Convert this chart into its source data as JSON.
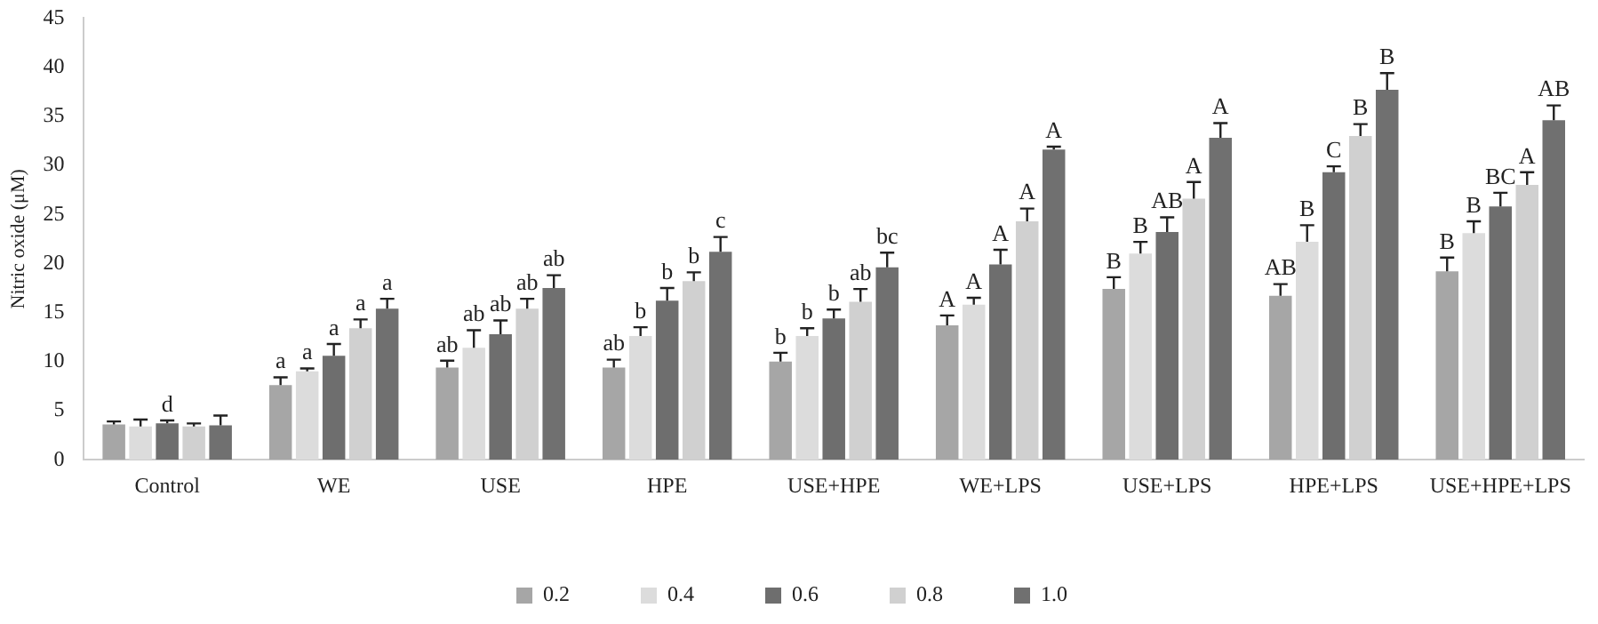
{
  "chart_data": {
    "type": "bar",
    "ylabel": "Nitric oxide (μM)",
    "categories": [
      "Control",
      "WE",
      "USE",
      "HPE",
      "USE+HPE",
      "WE+LPS",
      "USE+LPS",
      "HPE+LPS",
      "USE+HPE+LPS"
    ],
    "series": [
      {
        "name": "0.2",
        "color": "#a6a6a6",
        "values": [
          3.6,
          7.6,
          9.4,
          9.4,
          10.0,
          13.7,
          17.4,
          16.7,
          19.2
        ],
        "errors": [
          0.3,
          0.8,
          0.7,
          0.8,
          0.9,
          1.0,
          1.2,
          1.2,
          1.4
        ],
        "value_labels": [
          null,
          "a",
          "ab",
          "ab",
          "b",
          "A",
          "B",
          "AB",
          "B"
        ]
      },
      {
        "name": "0.4",
        "color": "#dcdcdc",
        "values": [
          3.4,
          9.0,
          11.4,
          12.6,
          12.6,
          15.8,
          21.0,
          22.2,
          23.1
        ],
        "errors": [
          0.7,
          0.3,
          1.8,
          0.9,
          0.8,
          0.7,
          1.2,
          1.7,
          1.2
        ],
        "value_labels": [
          null,
          "a",
          "ab",
          "b",
          "b",
          "A",
          "B",
          "B",
          "B"
        ]
      },
      {
        "name": "0.6",
        "color": "#6e6e6e",
        "values": [
          3.7,
          10.6,
          12.8,
          16.2,
          14.4,
          19.9,
          23.2,
          29.3,
          25.8
        ],
        "errors": [
          0.3,
          1.2,
          1.4,
          1.3,
          0.9,
          1.5,
          1.5,
          0.6,
          1.4
        ],
        "value_labels": [
          "d",
          "a",
          "ab",
          "b",
          "b",
          "A",
          "AB",
          "C",
          "BC"
        ]
      },
      {
        "name": "0.8",
        "color": "#d0d0d0",
        "values": [
          3.4,
          13.4,
          15.4,
          18.2,
          16.1,
          24.3,
          26.6,
          33.0,
          28.0
        ],
        "errors": [
          0.3,
          0.9,
          1.0,
          0.9,
          1.3,
          1.3,
          1.7,
          1.2,
          1.3
        ],
        "value_labels": [
          null,
          "a",
          "ab",
          "b",
          "ab",
          "A",
          "A",
          "B",
          "A"
        ]
      },
      {
        "name": "1.0",
        "color": "#707070",
        "values": [
          3.5,
          15.4,
          17.5,
          21.2,
          19.6,
          31.6,
          32.8,
          37.7,
          34.6
        ],
        "errors": [
          1.0,
          1.0,
          1.3,
          1.5,
          1.5,
          0.3,
          1.5,
          1.7,
          1.5
        ],
        "value_labels": [
          null,
          "a",
          "ab",
          "c",
          "bc",
          "A",
          "A",
          "B",
          "AB"
        ]
      }
    ],
    "ylim": [
      0,
      45
    ],
    "yticks": [
      0,
      5,
      10,
      15,
      20,
      25,
      30,
      35,
      40,
      45
    ],
    "grid": false,
    "legend": "bottom"
  }
}
